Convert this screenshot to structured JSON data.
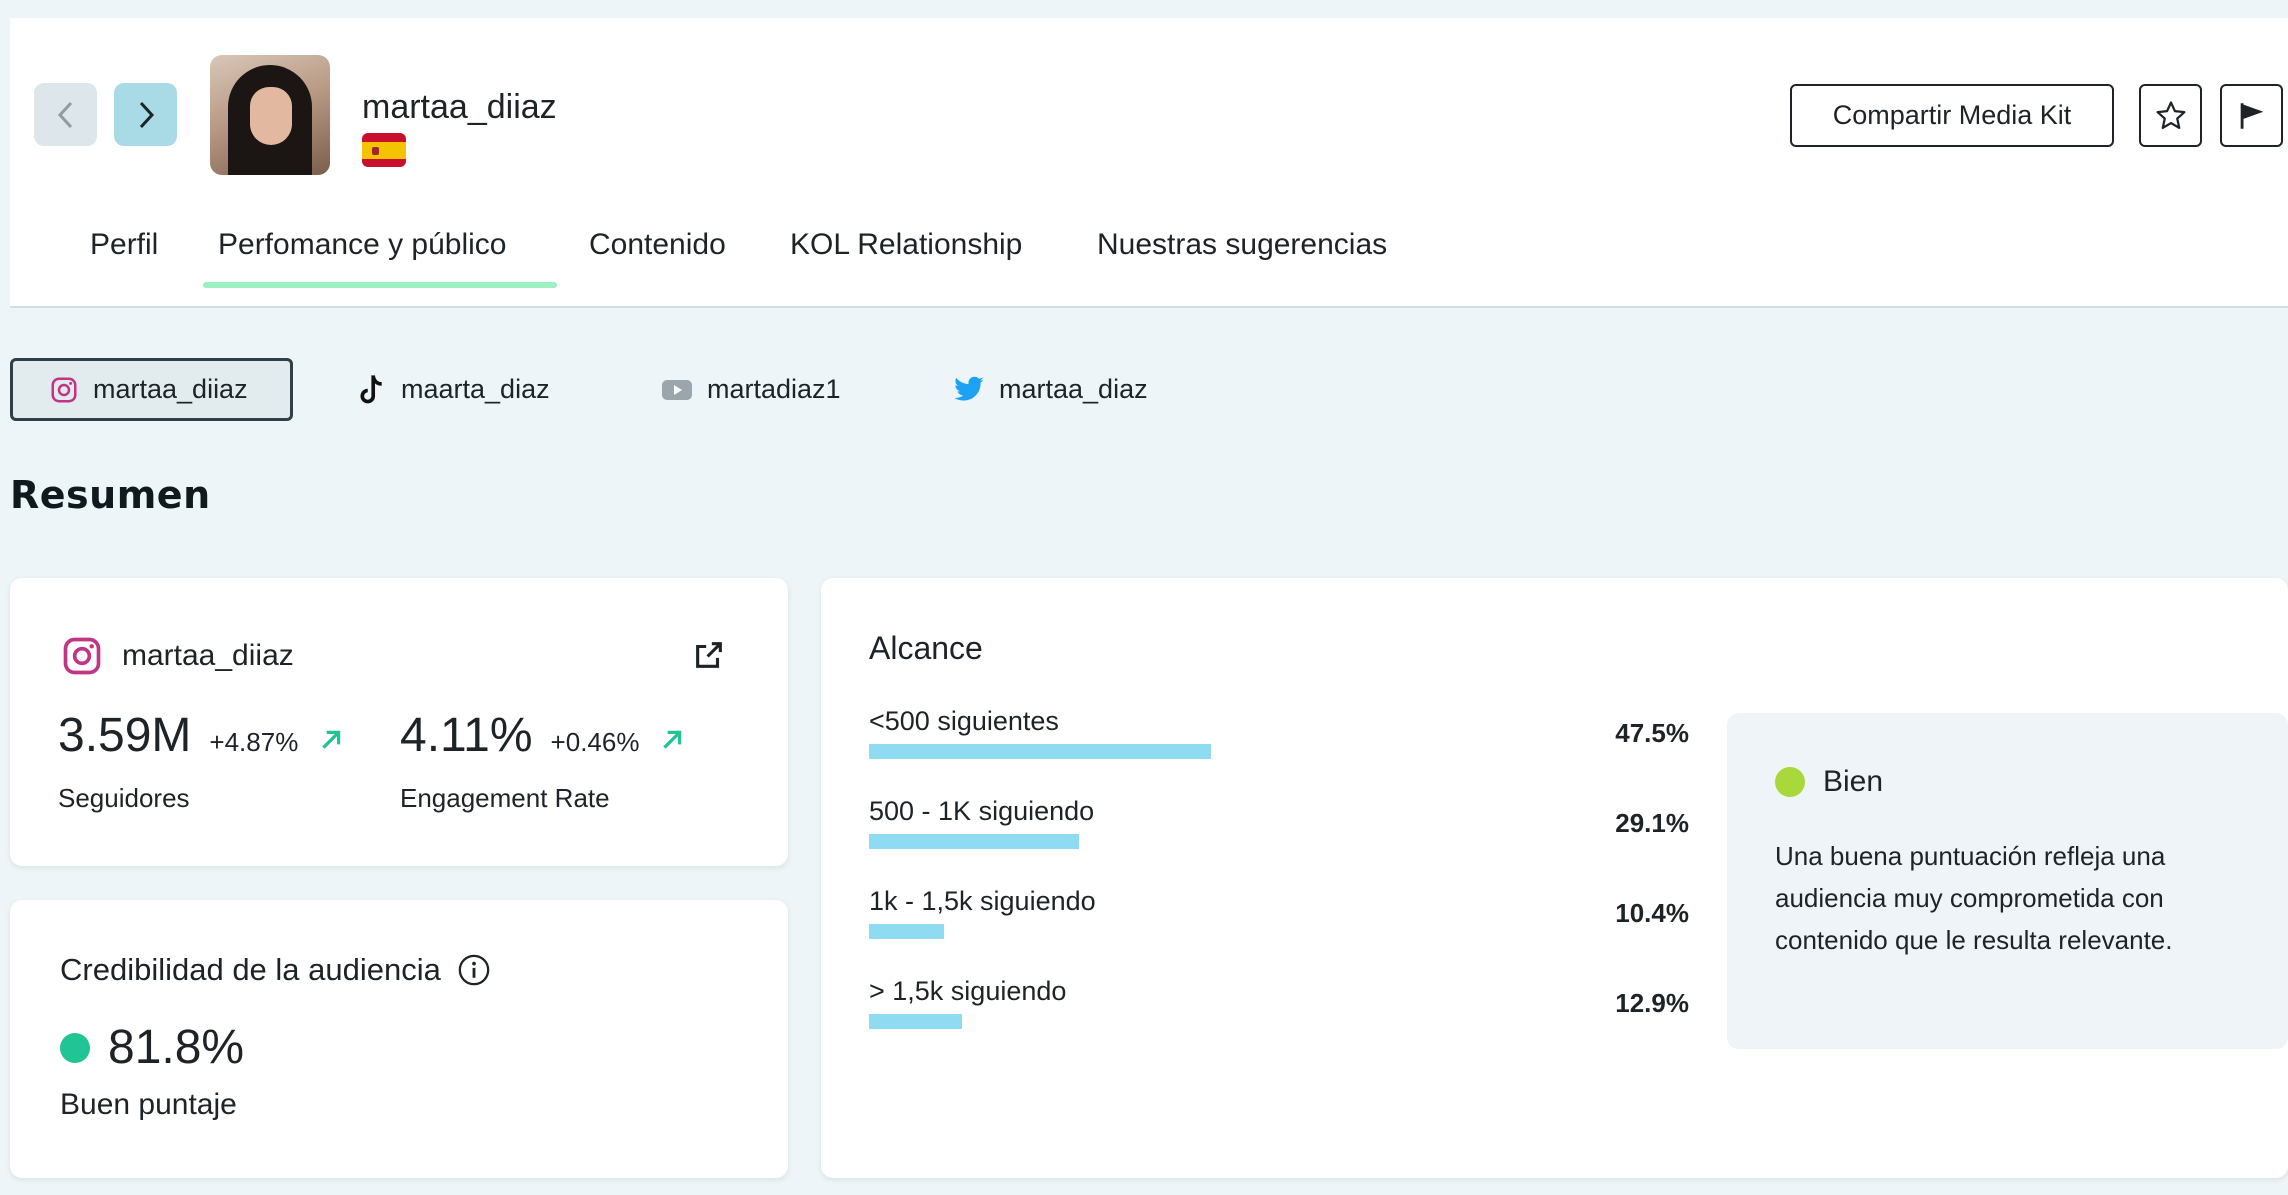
{
  "header": {
    "profile_name": "martaa_diiaz",
    "country_flag": "spain-flag",
    "share_label": "Compartir Media Kit",
    "tabs": [
      {
        "label": "Perfil",
        "active": false
      },
      {
        "label": "Perfomance y público",
        "active": true
      },
      {
        "label": "Contenido",
        "active": false
      },
      {
        "label": "KOL Relationship",
        "active": false
      },
      {
        "label": "Nuestras sugerencias",
        "active": false
      }
    ]
  },
  "platforms": [
    {
      "icon": "instagram-icon",
      "handle": "martaa_diiaz",
      "active": true
    },
    {
      "icon": "tiktok-icon",
      "handle": "maarta_diaz",
      "active": false
    },
    {
      "icon": "youtube-icon",
      "handle": "martadiaz1",
      "active": false
    },
    {
      "icon": "twitter-icon",
      "handle": "martaa_diaz",
      "active": false
    }
  ],
  "summary": {
    "title": "Resumen",
    "account": {
      "handle": "martaa_diiaz",
      "followers": "3.59M",
      "followers_delta": "+4.87%",
      "followers_label": "Seguidores",
      "engagement": "4.11%",
      "engagement_delta": "+0.46%",
      "engagement_label": "Engagement Rate"
    },
    "credibility": {
      "title": "Credibilidad de la audiencia",
      "value": "81.8%",
      "label": "Buen puntaje",
      "color": "#21c495"
    },
    "reach": {
      "title": "Alcance",
      "rows": [
        {
          "label": "<500 siguientes",
          "percent": "47.5%",
          "fraction": 0.475
        },
        {
          "label": "500 - 1K siguiendo",
          "percent": "29.1%",
          "fraction": 0.291
        },
        {
          "label": "1k - 1,5k siguiendo",
          "percent": "10.4%",
          "fraction": 0.104
        },
        {
          "label": "> 1,5k siguiendo",
          "percent": "12.9%",
          "fraction": 0.129
        }
      ],
      "bar_color": "#8fdcf2"
    },
    "rating": {
      "label": "Bien",
      "color": "#a9d83c",
      "text": "Una buena puntuación refleja una audiencia muy comprometida con contenido que le resulta relevante."
    }
  }
}
